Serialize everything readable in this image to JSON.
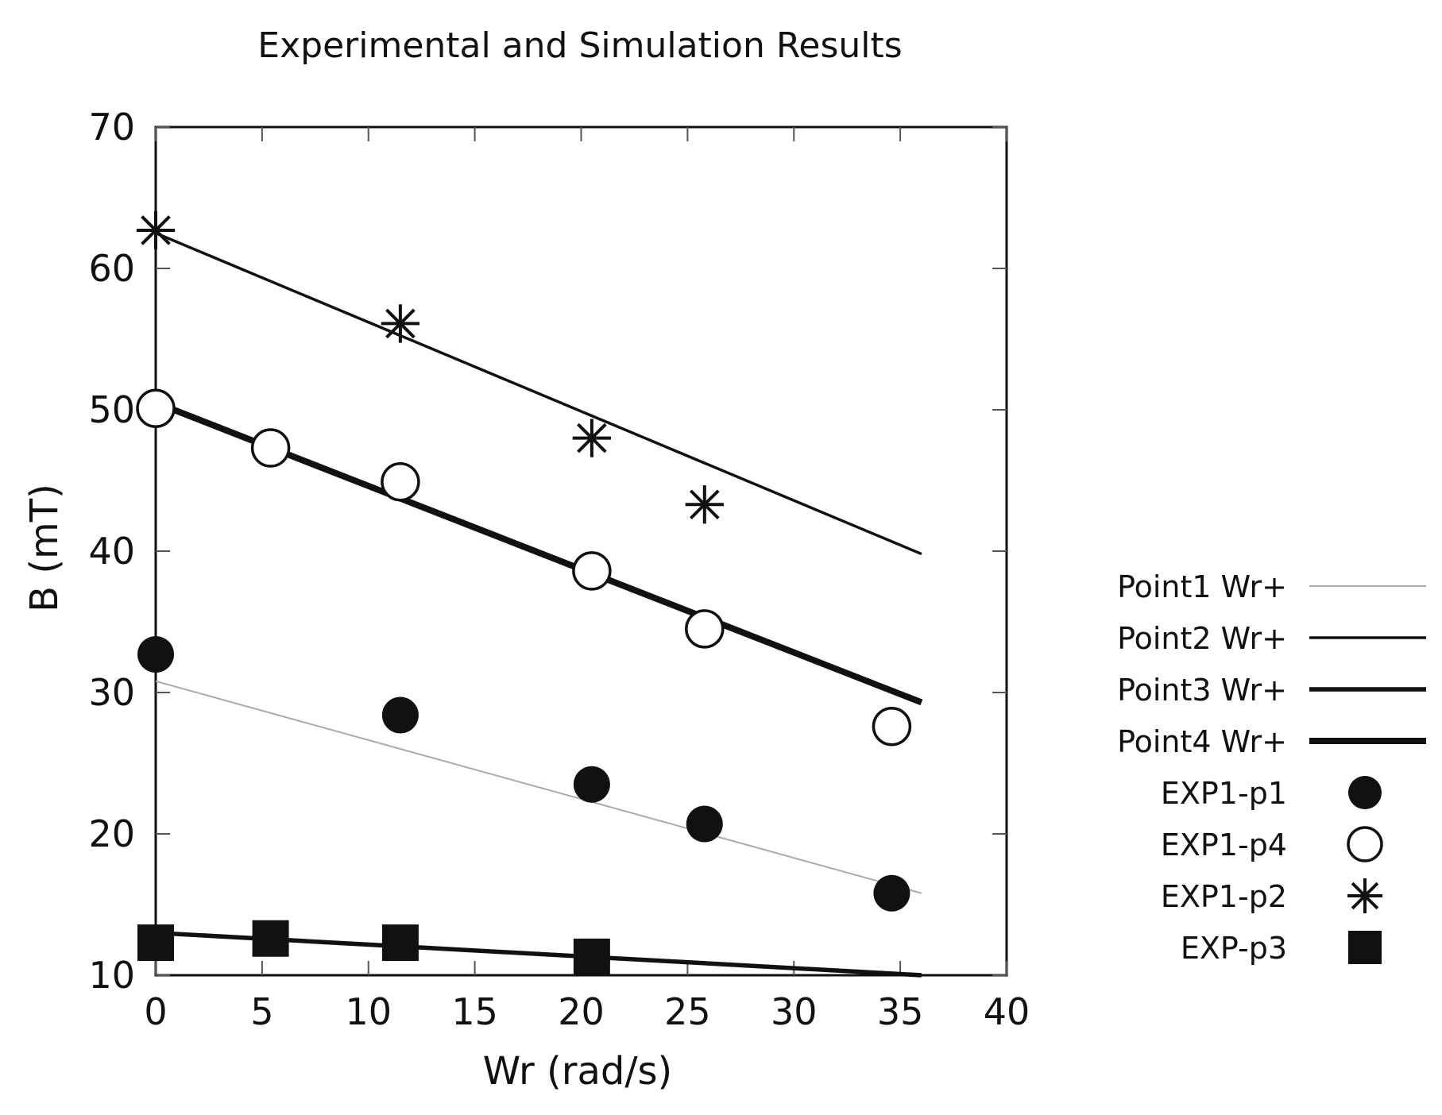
{
  "chart_data": {
    "type": "line",
    "title": "Experimental and Simulation Results",
    "xlabel": "Wr (rad/s)",
    "ylabel": "B (mT)",
    "xlim": [
      0,
      40
    ],
    "ylim": [
      10,
      70
    ],
    "xticks": [
      0,
      5,
      10,
      15,
      20,
      25,
      30,
      35,
      40
    ],
    "yticks": [
      10,
      20,
      30,
      40,
      50,
      60,
      70
    ],
    "grid": false,
    "legend_position": "right",
    "series": [
      {
        "name": "Point1 Wr+",
        "kind": "line",
        "color": "#aaaaaa",
        "weight": "thin",
        "x": [
          0,
          36
        ],
        "y": [
          30.8,
          15.8
        ]
      },
      {
        "name": "Point2 Wr+",
        "kind": "line",
        "color": "#111111",
        "weight": "medium",
        "x": [
          0,
          36
        ],
        "y": [
          62.5,
          39.8
        ]
      },
      {
        "name": "Point3 Wr+",
        "kind": "line",
        "color": "#111111",
        "weight": "bold",
        "x": [
          0,
          36
        ],
        "y": [
          13,
          10
        ]
      },
      {
        "name": "Point4 Wr+",
        "kind": "line",
        "color": "#111111",
        "weight": "heavy",
        "x": [
          0,
          36
        ],
        "y": [
          50.5,
          29.3
        ]
      },
      {
        "name": "EXP1-p1",
        "kind": "marker",
        "marker": "filled-circle",
        "x": [
          0,
          11.5,
          20.5,
          25.8,
          34.6
        ],
        "y": [
          32.7,
          28.4,
          23.5,
          20.7,
          15.8
        ]
      },
      {
        "name": "EXP1-p4",
        "kind": "marker",
        "marker": "open-circle",
        "x": [
          0,
          5.4,
          11.5,
          20.5,
          25.8,
          34.6
        ],
        "y": [
          50.1,
          47.3,
          44.9,
          38.6,
          34.5,
          27.6
        ]
      },
      {
        "name": "EXP1-p2",
        "kind": "marker",
        "marker": "asterisk",
        "x": [
          0,
          11.5,
          20.5,
          25.8
        ],
        "y": [
          62.7,
          56.1,
          48.0,
          43.3
        ]
      },
      {
        "name": "EXP-p3",
        "kind": "marker",
        "marker": "filled-square",
        "x": [
          0,
          5.4,
          11.5,
          20.5
        ],
        "y": [
          12.3,
          12.6,
          12.3,
          11.3
        ]
      }
    ]
  }
}
